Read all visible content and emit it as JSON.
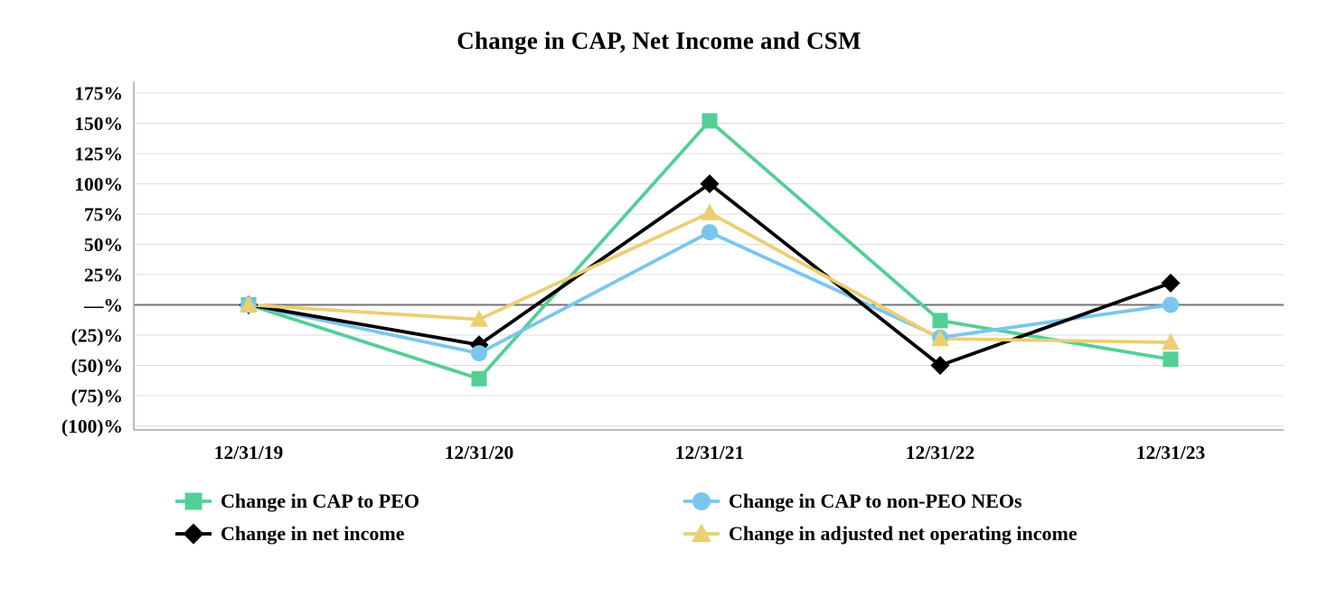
{
  "chart_data": {
    "type": "line",
    "title": "Change in CAP, Net Income and CSM",
    "categories": [
      "12/31/19",
      "12/31/20",
      "12/31/21",
      "12/31/22",
      "12/31/23"
    ],
    "series": [
      {
        "name": "Change in CAP to PEO",
        "marker": "square",
        "color": "#53cf96",
        "values": [
          0,
          -61,
          152,
          -13,
          -45
        ]
      },
      {
        "name": "Change in CAP to non-PEO NEOs",
        "marker": "circle",
        "color": "#7ac6ee",
        "values": [
          0,
          -40,
          60,
          -27,
          0
        ]
      },
      {
        "name": "Change in net income",
        "marker": "diamond",
        "color": "#000000",
        "values": [
          0,
          -33,
          100,
          -50,
          18
        ]
      },
      {
        "name": "Change in adjusted net operating income",
        "marker": "triangle",
        "color": "#ecce73",
        "values": [
          0,
          -12,
          76,
          -28,
          -31
        ]
      }
    ],
    "ylim": [
      -100,
      175
    ],
    "y_tick_step": 25,
    "y_tick_labels": [
      "175%",
      "150%",
      "125%",
      "100%",
      "75%",
      "50%",
      "25%",
      "—%",
      "(25)%",
      "(50)%",
      "(75)%",
      "(100)%"
    ],
    "grid": true,
    "legend_position": "bottom",
    "colors": {
      "gridline": "#dcdcdc",
      "zero_line": "#737373",
      "axis_line": "#a8a8a8",
      "text": "#000000",
      "background": "#ffffff"
    }
  }
}
